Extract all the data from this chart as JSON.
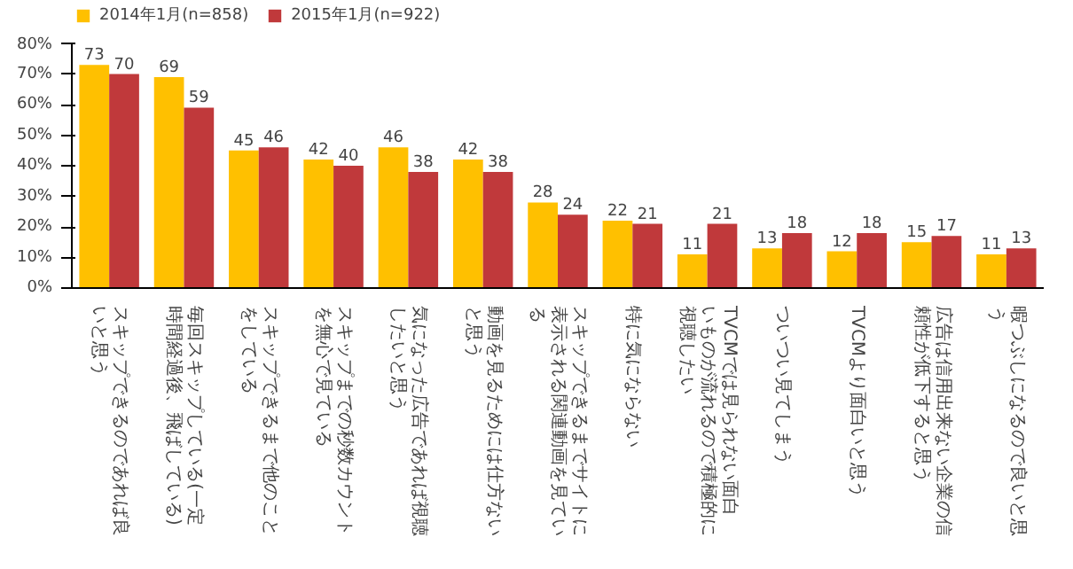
{
  "chart_data": {
    "type": "bar",
    "categories": [
      "スキップできるのであれば良いと思う",
      "毎回スキップしている(一定時間経過後、飛ばしている)",
      "スキップできるまで他のことをしている",
      "スキップまでの秒数カウントを無心で見ている",
      "気になった広告であれば視聴したいと思う",
      "動画を見るためには仕方ないと思う",
      "スキップできるまでサイトに表示される関連動画を見ている",
      "特に気にならない",
      "TVCMでは見られない面白いものが流れるので積極的に視聴したい",
      "ついつい見てしまう",
      "TVCMより面白いと思う",
      "広告は信用出来ない企業の信頼性が低下すると思う",
      "暇つぶしになるので良いと思う"
    ],
    "series": [
      {
        "name": "2014年1月(n=858)",
        "color": "#ffc000",
        "values": [
          73,
          69,
          45,
          42,
          46,
          42,
          28,
          22,
          11,
          13,
          12,
          15,
          11
        ]
      },
      {
        "name": "2015年1月(n=922)",
        "color": "#c0393b",
        "values": [
          70,
          59,
          46,
          40,
          38,
          38,
          24,
          21,
          21,
          18,
          18,
          17,
          13
        ]
      }
    ],
    "ylim": [
      0,
      80
    ],
    "yticks": [
      {
        "value": 0,
        "label": "0%"
      },
      {
        "value": 10,
        "label": "10%"
      },
      {
        "value": 20,
        "label": "20%"
      },
      {
        "value": 30,
        "label": "30%"
      },
      {
        "value": 40,
        "label": "40%"
      },
      {
        "value": 50,
        "label": "50%"
      },
      {
        "value": 60,
        "label": "60%"
      },
      {
        "value": 70,
        "label": "70%"
      },
      {
        "value": 80,
        "label": "80%"
      }
    ],
    "data_labels": true,
    "grid": false,
    "legend": "top left"
  }
}
